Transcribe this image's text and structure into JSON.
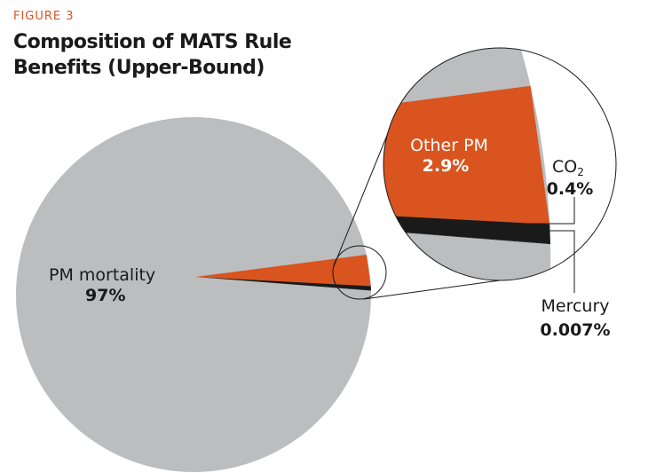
{
  "figure_label": "FIGURE 3",
  "title_line1": "Composition of MATS Rule",
  "title_line2": "Benefits (Upper-Bound)",
  "chart_data": {
    "type": "pie",
    "title": "Composition of MATS Rule Benefits (Upper-Bound)",
    "slices": [
      {
        "name": "PM mortality",
        "label": "97%",
        "value": 97,
        "color": "#bcbdbf"
      },
      {
        "name": "Other PM",
        "label": "2.9%",
        "value": 2.9,
        "color": "#d9541e"
      },
      {
        "name": "CO2",
        "label": "0.4%",
        "value": 0.4,
        "color": "#1a1a1a"
      },
      {
        "name": "Mercury",
        "label": "0.007%",
        "value": 0.007,
        "color": "#1a1a1a"
      }
    ],
    "inset": "magnified view of the small slices"
  }
}
